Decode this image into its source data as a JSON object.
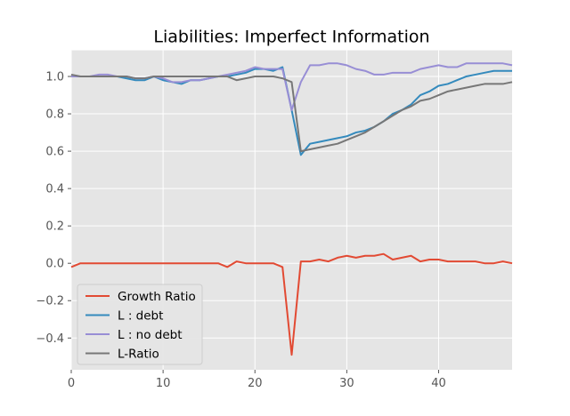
{
  "chart_data": {
    "type": "line",
    "title": "Liabilities: Imperfect Information",
    "xlabel": "",
    "ylabel": "",
    "xlim": [
      0,
      48
    ],
    "ylim": [
      -0.57,
      1.14
    ],
    "xticks": [
      0,
      10,
      20,
      30,
      40
    ],
    "yticks": [
      -0.4,
      -0.2,
      0.0,
      0.2,
      0.4,
      0.6,
      0.8,
      1.0
    ],
    "ytick_labels": [
      "−0.4",
      "−0.2",
      "0.0",
      "0.2",
      "0.4",
      "0.6",
      "0.8",
      "1.0"
    ],
    "grid": true,
    "legend_position": "lower-left",
    "x": [
      0,
      1,
      2,
      3,
      4,
      5,
      6,
      7,
      8,
      9,
      10,
      11,
      12,
      13,
      14,
      15,
      16,
      17,
      18,
      19,
      20,
      21,
      22,
      23,
      24,
      25,
      26,
      27,
      28,
      29,
      30,
      31,
      32,
      33,
      34,
      35,
      36,
      37,
      38,
      39,
      40,
      41,
      42,
      43,
      44,
      45,
      46,
      47,
      48
    ],
    "series": [
      {
        "name": "Growth Ratio",
        "color": "#E24A33",
        "values": [
          -0.02,
          0.0,
          0.0,
          0.0,
          0.0,
          0.0,
          0.0,
          0.0,
          0.0,
          0.0,
          0.0,
          0.0,
          0.0,
          0.0,
          0.0,
          0.0,
          0.0,
          -0.02,
          0.01,
          0.0,
          0.0,
          0.0,
          0.0,
          -0.02,
          -0.49,
          0.01,
          0.01,
          0.02,
          0.01,
          0.03,
          0.04,
          0.03,
          0.04,
          0.04,
          0.05,
          0.02,
          0.03,
          0.04,
          0.01,
          0.02,
          0.02,
          0.01,
          0.01,
          0.01,
          0.01,
          0.0,
          0.0,
          0.01,
          0.0
        ]
      },
      {
        "name": "L : debt",
        "color": "#348ABD",
        "values": [
          1.0,
          1.0,
          1.0,
          1.0,
          1.0,
          1.0,
          0.99,
          0.98,
          0.98,
          1.0,
          0.98,
          0.97,
          0.96,
          0.98,
          0.98,
          0.99,
          1.0,
          1.0,
          1.01,
          1.02,
          1.04,
          1.04,
          1.03,
          1.05,
          0.82,
          0.58,
          0.64,
          0.65,
          0.66,
          0.67,
          0.68,
          0.7,
          0.71,
          0.73,
          0.76,
          0.8,
          0.82,
          0.85,
          0.9,
          0.92,
          0.95,
          0.96,
          0.98,
          1.0,
          1.01,
          1.02,
          1.03,
          1.03,
          1.03
        ]
      },
      {
        "name": "L : no debt",
        "color": "#988ED5",
        "values": [
          1.0,
          1.0,
          1.0,
          1.01,
          1.01,
          1.0,
          1.0,
          0.99,
          0.99,
          1.0,
          0.99,
          0.97,
          0.97,
          0.98,
          0.98,
          0.99,
          1.0,
          1.01,
          1.02,
          1.03,
          1.05,
          1.04,
          1.04,
          1.04,
          0.82,
          0.97,
          1.06,
          1.06,
          1.07,
          1.07,
          1.06,
          1.04,
          1.03,
          1.01,
          1.01,
          1.02,
          1.02,
          1.02,
          1.04,
          1.05,
          1.06,
          1.05,
          1.05,
          1.07,
          1.07,
          1.07,
          1.07,
          1.07,
          1.06
        ]
      },
      {
        "name": "L-Ratio",
        "color": "#777777",
        "values": [
          1.01,
          1.0,
          1.0,
          1.0,
          1.0,
          1.0,
          1.0,
          0.99,
          0.99,
          1.0,
          1.0,
          1.0,
          1.0,
          1.0,
          1.0,
          1.0,
          1.0,
          1.0,
          0.98,
          0.99,
          1.0,
          1.0,
          1.0,
          0.99,
          0.97,
          0.6,
          0.61,
          0.62,
          0.63,
          0.64,
          0.66,
          0.68,
          0.7,
          0.73,
          0.76,
          0.79,
          0.82,
          0.84,
          0.87,
          0.88,
          0.9,
          0.92,
          0.93,
          0.94,
          0.95,
          0.96,
          0.96,
          0.96,
          0.97
        ]
      }
    ]
  }
}
